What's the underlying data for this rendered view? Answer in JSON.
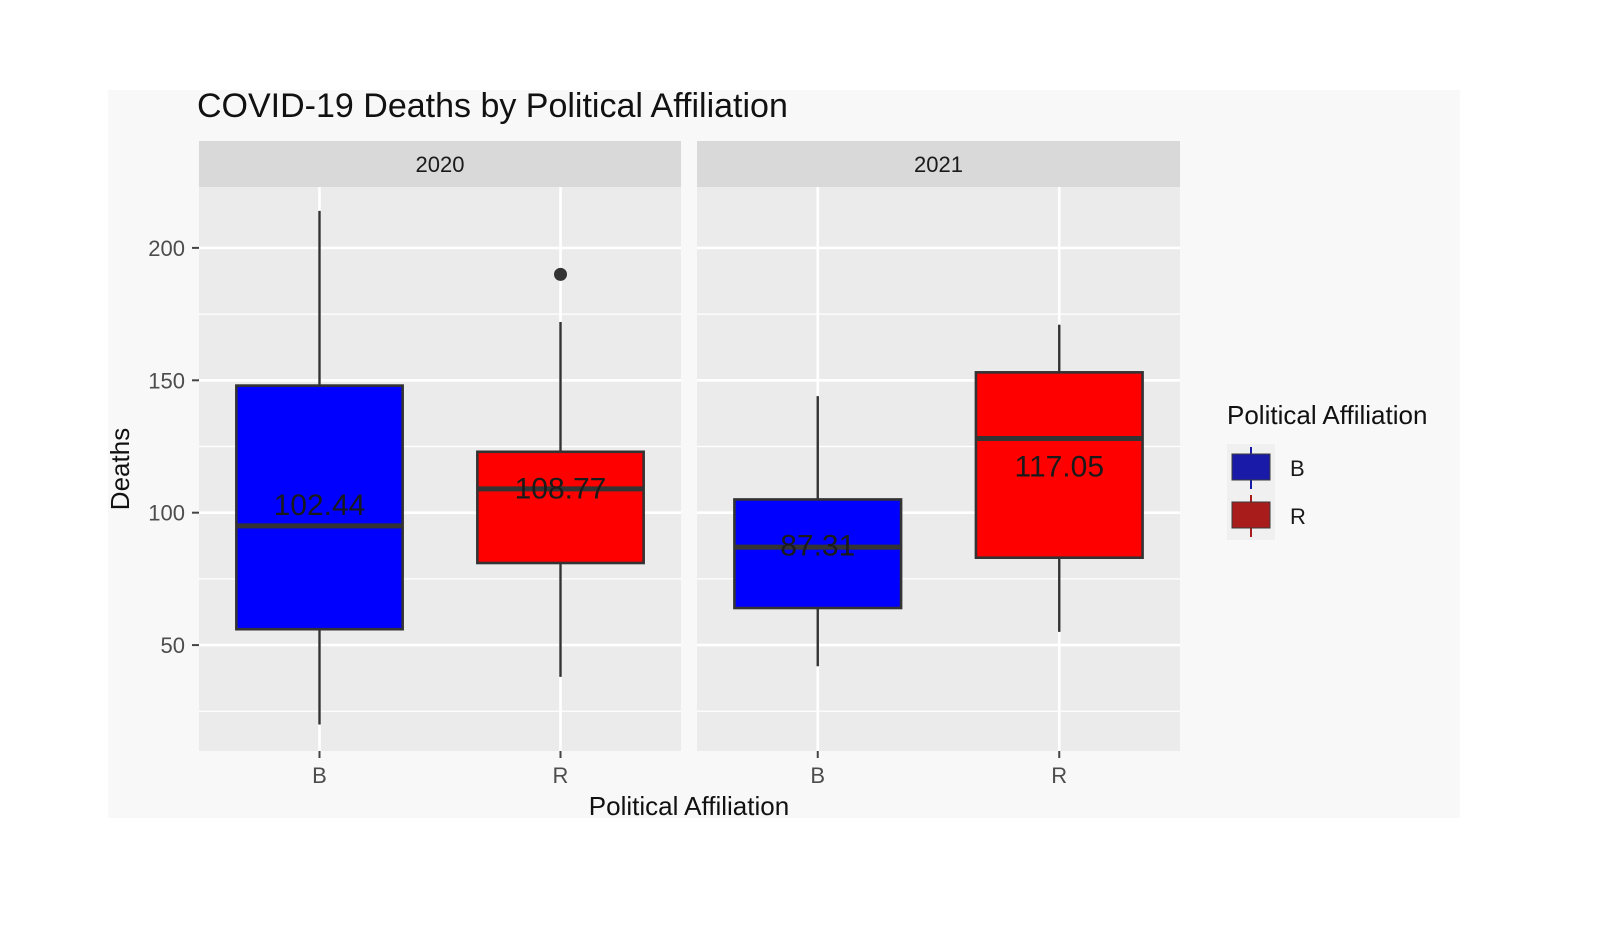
{
  "chart_data": {
    "type": "boxplot",
    "title": "COVID-19 Deaths by Political Affiliation",
    "xlabel": "Political Affiliation",
    "ylabel": "Deaths",
    "ylim": [
      10,
      223
    ],
    "yticks": [
      50,
      100,
      150,
      200
    ],
    "legend": {
      "title": "Political Affiliation",
      "position": "right",
      "entries": [
        {
          "label": "B",
          "color": "#0000ff",
          "swatch_color": "#1a1aa8"
        },
        {
          "label": "R",
          "color": "#ff0000",
          "swatch_color": "#a81c1c"
        }
      ]
    },
    "facets": [
      {
        "label": "2020",
        "categories": [
          "B",
          "R"
        ],
        "boxes": [
          {
            "category": "B",
            "color": "#0000ff",
            "whisker_low": 20,
            "q1": 56,
            "median": 95,
            "q3": 148,
            "whisker_high": 214,
            "outliers": [],
            "mean_label": "102.44",
            "mean_value": 102.44
          },
          {
            "category": "R",
            "color": "#ff0000",
            "whisker_low": 38,
            "q1": 81,
            "median": 109,
            "q3": 123,
            "whisker_high": 172,
            "outliers": [
              190
            ],
            "mean_label": "108.77",
            "mean_value": 108.77
          }
        ]
      },
      {
        "label": "2021",
        "categories": [
          "B",
          "R"
        ],
        "boxes": [
          {
            "category": "B",
            "color": "#0000ff",
            "whisker_low": 42,
            "q1": 64,
            "median": 87,
            "q3": 105,
            "whisker_high": 144,
            "outliers": [],
            "mean_label": "87.31",
            "mean_value": 87.31
          },
          {
            "category": "R",
            "color": "#ff0000",
            "whisker_low": 55,
            "q1": 83,
            "median": 128,
            "q3": 153,
            "whisker_high": 171,
            "outliers": [],
            "mean_label": "117.05",
            "mean_value": 117.05
          }
        ]
      }
    ],
    "grid": true,
    "colors": {
      "panel_bg": "#ebebeb",
      "strip_bg": "#d9d9d9",
      "grid": "#ffffff",
      "box_outline": "#333333",
      "outer_bg": "#f8f8f8"
    }
  }
}
